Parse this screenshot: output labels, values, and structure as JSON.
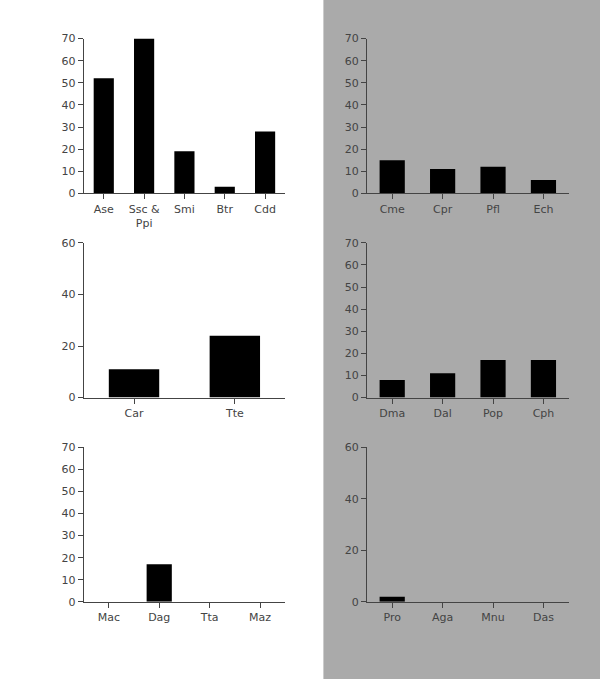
{
  "chart_data": [
    {
      "type": "bar",
      "categories": [
        "Ase",
        "Ssc &\nPpi",
        "Smi",
        "Btr",
        "Cdd"
      ],
      "values": [
        52,
        70,
        19,
        3,
        28
      ],
      "color": "#000000",
      "ylim": [
        0,
        70
      ],
      "yticks": [
        0,
        10,
        20,
        30,
        40,
        50,
        60,
        70
      ],
      "grid": false
    },
    {
      "type": "bar",
      "categories": [
        "Cme",
        "Cpr",
        "Pfl",
        "Ech"
      ],
      "values": [
        15,
        11,
        12,
        6
      ],
      "color": "#000000",
      "ylim": [
        0,
        70
      ],
      "yticks": [
        0,
        10,
        20,
        30,
        40,
        50,
        60,
        70
      ],
      "grid": false
    },
    {
      "type": "bar",
      "categories": [
        "Car",
        "Tte"
      ],
      "values": [
        11,
        24
      ],
      "color": "#000000",
      "ylim": [
        0,
        60
      ],
      "yticks": [
        0,
        20,
        40,
        60
      ],
      "grid": false
    },
    {
      "type": "bar",
      "categories": [
        "Dma",
        "Dal",
        "Pop",
        "Cph"
      ],
      "values": [
        8,
        11,
        17,
        17
      ],
      "color": "#000000",
      "ylim": [
        0,
        70
      ],
      "yticks": [
        0,
        10,
        20,
        30,
        40,
        50,
        60,
        70
      ],
      "grid": false
    },
    {
      "type": "bar",
      "categories": [
        "Mac",
        "Dag",
        "Tta",
        "Maz"
      ],
      "values": [
        0,
        17,
        0,
        0
      ],
      "color": "#000000",
      "ylim": [
        0,
        70
      ],
      "yticks": [
        0,
        10,
        20,
        30,
        40,
        50,
        60,
        70
      ],
      "grid": false
    },
    {
      "type": "bar",
      "categories": [
        "Pro",
        "Aga",
        "Mnu",
        "Das"
      ],
      "values": [
        2,
        0,
        0,
        0
      ],
      "color": "#000000",
      "ylim": [
        0,
        60
      ],
      "yticks": [
        0,
        20,
        40,
        60
      ],
      "grid": false
    }
  ]
}
